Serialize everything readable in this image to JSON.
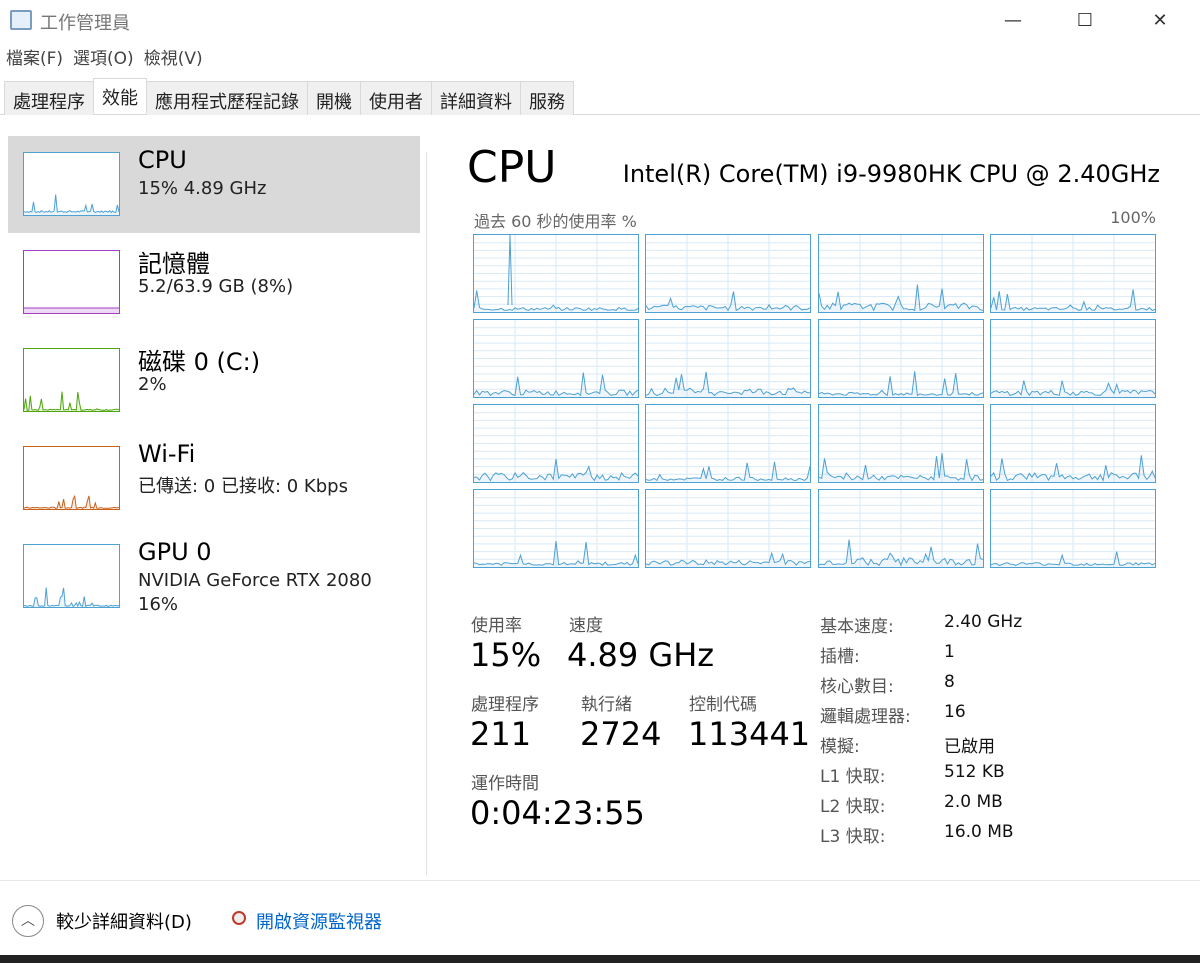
{
  "window": {
    "title": "工作管理員",
    "icon": "task-manager-icon",
    "controls": [
      "—",
      "☐",
      "✕"
    ]
  },
  "menu": [
    "檔案(F)",
    "選項(O)",
    "檢視(V)"
  ],
  "tabs": [
    {
      "label": "處理程序"
    },
    {
      "label": "效能",
      "active": true
    },
    {
      "label": "應用程式歷程記錄"
    },
    {
      "label": "開機"
    },
    {
      "label": "使用者"
    },
    {
      "label": "詳細資料"
    },
    {
      "label": "服務"
    }
  ],
  "sidebar": [
    {
      "name": "CPU",
      "sub": "15% 4.89 GHz",
      "color": "#4ea1d3",
      "selected": true
    },
    {
      "name": "記憶體",
      "sub": "5.2/63.9 GB (8%)",
      "color": "#a43fc1"
    },
    {
      "name": "磁碟 0 (C:)",
      "sub": "2%",
      "color": "#4da60c"
    },
    {
      "name": "Wi-Fi",
      "sub": "已傳送: 0 已接收: 0 Kbps",
      "color": "#c8611b"
    },
    {
      "name": "GPU 0",
      "sub": "NVIDIA GeForce RTX 2080",
      "sub2": "16%",
      "color": "#4ea1d3"
    }
  ],
  "main": {
    "heading": "CPU",
    "model": "Intel(R) Core(TM) i9-9980HK CPU @ 2.40GHz",
    "graph_label": "過去 60 秒的使用率 %",
    "graph_max": "100%",
    "graph_color": "#4ea1d3",
    "logical_graphs": 16,
    "stats": {
      "usage_l": "使用率",
      "usage_v": "15%",
      "speed_l": "速度",
      "speed_v": "4.89 GHz",
      "proc_l": "處理程序",
      "proc_v": "211",
      "thr_l": "執行緒",
      "thr_v": "2724",
      "hnd_l": "控制代碼",
      "hnd_v": "113441",
      "up_l": "運作時間",
      "up_v": "0:04:23:55"
    },
    "specs": [
      [
        "基本速度:",
        "2.40 GHz"
      ],
      [
        "插槽:",
        "1"
      ],
      [
        "核心數目:",
        "8"
      ],
      [
        "邏輯處理器:",
        "16"
      ],
      [
        "模擬:",
        "已啟用"
      ],
      [
        "L1 快取:",
        "512 KB"
      ],
      [
        "L2 快取:",
        "2.0 MB"
      ],
      [
        "L3 快取:",
        "16.0 MB"
      ]
    ]
  },
  "footer": {
    "less": "較少詳細資料(D)",
    "monitor": "開啟資源監視器"
  }
}
